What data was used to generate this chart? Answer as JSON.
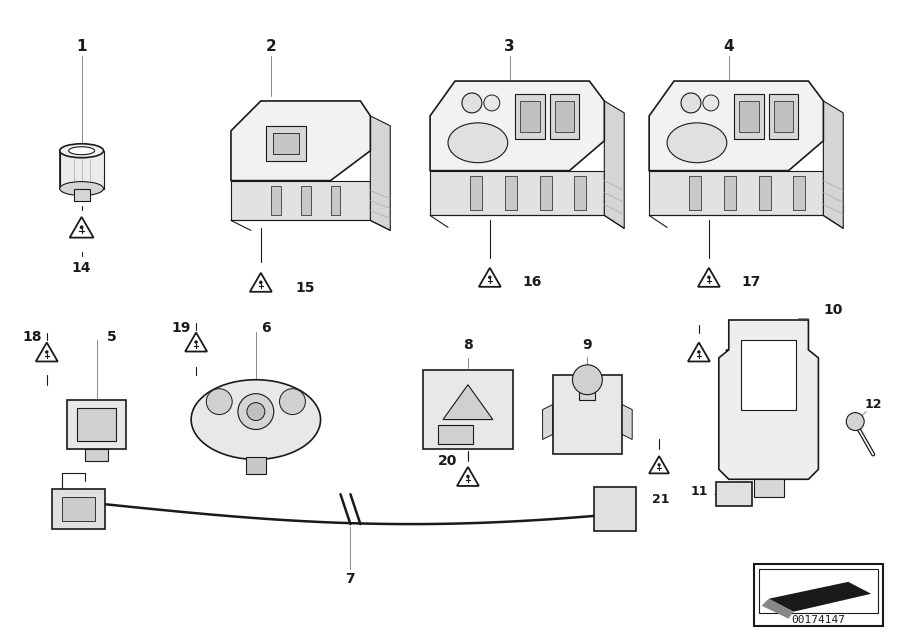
{
  "bg_color": "#ffffff",
  "lc": "#1a1a1a",
  "lc_light": "#555555",
  "lw": 0.8,
  "lw_thick": 1.2,
  "part_number": "00174147",
  "fig_w": 9.0,
  "fig_h": 6.36,
  "dpi": 100
}
